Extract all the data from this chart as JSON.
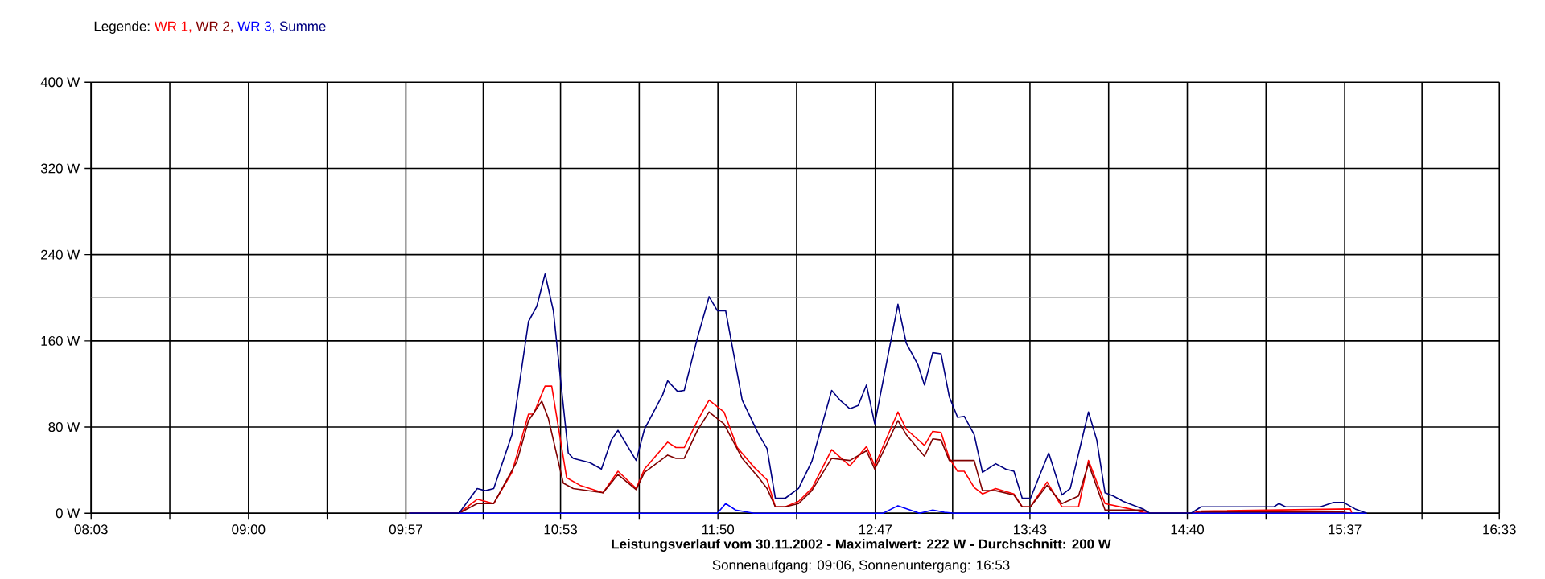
{
  "chart_data": {
    "type": "line",
    "title": "Leistungsverlauf vom 30.11.2002 - Maximalwert: 222 W - Durchschnitt: 200 W",
    "subtitle": "Sonnenaufgang: 09:06, Sonnenuntergang: 16:53",
    "legend_title": "Legende:",
    "legend": "top left",
    "grid": true,
    "xlim": [
      8.05,
      16.55
    ],
    "ylim": [
      0,
      400
    ],
    "xticks": [
      {
        "value": 8.05,
        "label": "08:03"
      },
      {
        "value": 8.525,
        "label": null
      },
      {
        "value": 9,
        "label": "09:00"
      },
      {
        "value": 9.475,
        "label": null
      },
      {
        "value": 9.95,
        "label": "09:57"
      },
      {
        "value": 10.4167,
        "label": null
      },
      {
        "value": 10.8833,
        "label": "10:53"
      },
      {
        "value": 11.3583,
        "label": null
      },
      {
        "value": 11.8333,
        "label": "11:50"
      },
      {
        "value": 12.3083,
        "label": null
      },
      {
        "value": 12.7833,
        "label": "12:47"
      },
      {
        "value": 13.25,
        "label": null
      },
      {
        "value": 13.7167,
        "label": "13:43"
      },
      {
        "value": 14.1917,
        "label": null
      },
      {
        "value": 14.6667,
        "label": "14:40"
      },
      {
        "value": 15.1417,
        "label": null
      },
      {
        "value": 15.6167,
        "label": "15:37"
      },
      {
        "value": 16.0833,
        "label": null
      },
      {
        "value": 16.55,
        "label": "16:33"
      }
    ],
    "yticks": [
      {
        "value": 0,
        "label": "0 W"
      },
      {
        "value": 80,
        "label": "80 W"
      },
      {
        "value": 160,
        "label": "160 W"
      },
      {
        "value": 240,
        "label": "240 W"
      },
      {
        "value": 320,
        "label": "320 W"
      },
      {
        "value": 400,
        "label": "400 W"
      }
    ],
    "ref_lines": [
      {
        "axis": "y",
        "value": 200,
        "color": "#808080"
      }
    ],
    "series": [
      {
        "name": "WR 1,",
        "color": "#ff0000",
        "x": [
          9.97,
          10.27,
          10.38,
          10.48,
          10.59,
          10.69,
          10.72,
          10.79,
          10.83,
          10.92,
          11.0,
          11.14,
          11.23,
          11.34,
          11.39,
          11.53,
          11.58,
          11.63,
          11.71,
          11.78,
          11.87,
          11.95,
          12.05,
          12.13,
          12.18,
          12.24,
          12.32,
          12.4,
          12.52,
          12.63,
          12.73,
          12.78,
          12.92,
          12.97,
          13.08,
          13.13,
          13.18,
          13.23,
          13.28,
          13.32,
          13.38,
          13.43,
          13.51,
          13.62,
          13.67,
          13.72,
          13.82,
          13.91,
          14.01,
          14.07,
          14.12,
          14.17,
          14.32,
          14.4,
          14.44,
          14.69,
          14.75,
          15.65,
          15.66
        ],
        "values": [
          0,
          0,
          13,
          9,
          38,
          92,
          92,
          118,
          118,
          33,
          26,
          19,
          39,
          23,
          41,
          66,
          61,
          61,
          86,
          105,
          94,
          61,
          43,
          31,
          6,
          6,
          11,
          23,
          59,
          44,
          62,
          44,
          94,
          78,
          63,
          76,
          75,
          51,
          39,
          39,
          24,
          18,
          23,
          18,
          6,
          6,
          29,
          6,
          6,
          49,
          29,
          9,
          4,
          1,
          0,
          0,
          2,
          4,
          0
        ]
      },
      {
        "name": "WR 2,",
        "color": "#800000",
        "x": [
          9.97,
          10.27,
          10.38,
          10.48,
          10.62,
          10.69,
          10.77,
          10.81,
          10.9,
          10.96,
          11.14,
          11.23,
          11.34,
          11.39,
          11.53,
          11.58,
          11.63,
          11.71,
          11.78,
          11.87,
          11.98,
          12.08,
          12.13,
          12.18,
          12.24,
          12.32,
          12.4,
          12.52,
          12.63,
          12.73,
          12.78,
          12.92,
          12.97,
          13.08,
          13.13,
          13.18,
          13.23,
          13.38,
          13.43,
          13.51,
          13.62,
          13.67,
          13.72,
          13.82,
          13.91,
          14.01,
          14.07,
          14.17,
          14.32,
          14.4,
          14.44,
          14.69,
          14.75,
          15.61,
          15.65
        ],
        "values": [
          0,
          0,
          9,
          9,
          48,
          86,
          104,
          88,
          28,
          23,
          19,
          36,
          22,
          38,
          54,
          51,
          51,
          77,
          94,
          83,
          51,
          33,
          23,
          6,
          6,
          9,
          21,
          51,
          49,
          58,
          41,
          86,
          73,
          53,
          69,
          68,
          49,
          49,
          21,
          21,
          17,
          6,
          6,
          26,
          9,
          16,
          46,
          3,
          3,
          3,
          0,
          0,
          1,
          1,
          0
        ]
      },
      {
        "name": "WR 3,",
        "color": "#0000ff",
        "x": [
          9.97,
          11.83,
          11.88,
          11.94,
          12.05,
          12.83,
          12.92,
          13.05,
          13.13,
          13.2,
          13.26,
          15.75
        ],
        "values": [
          0,
          0,
          9,
          3,
          0,
          0,
          7,
          0,
          3,
          1,
          0,
          0
        ]
      },
      {
        "name": "Summe",
        "color": "#000080",
        "x": [
          9.97,
          10.27,
          10.38,
          10.43,
          10.48,
          10.59,
          10.69,
          10.74,
          10.79,
          10.84,
          10.93,
          10.96,
          11.06,
          11.13,
          11.19,
          11.23,
          11.34,
          11.39,
          11.5,
          11.53,
          11.59,
          11.63,
          11.71,
          11.78,
          11.83,
          11.88,
          11.98,
          12.08,
          12.13,
          12.18,
          12.24,
          12.32,
          12.4,
          12.52,
          12.57,
          12.63,
          12.68,
          12.73,
          12.78,
          12.92,
          12.97,
          13.04,
          13.08,
          13.13,
          13.18,
          13.23,
          13.28,
          13.32,
          13.38,
          13.43,
          13.51,
          13.57,
          13.62,
          13.67,
          13.72,
          13.83,
          13.91,
          13.96,
          14.07,
          14.12,
          14.17,
          14.22,
          14.28,
          14.4,
          14.44,
          14.69,
          14.75,
          15.19,
          15.22,
          15.26,
          15.47,
          15.55,
          15.61,
          15.68,
          15.75
        ],
        "values": [
          0,
          0,
          23,
          21,
          23,
          73,
          178,
          192,
          222,
          188,
          56,
          51,
          47,
          41,
          68,
          77,
          49,
          78,
          110,
          123,
          113,
          114,
          163,
          201,
          188,
          188,
          105,
          73,
          60,
          14,
          14,
          23,
          48,
          114,
          105,
          97,
          100,
          119,
          83,
          194,
          158,
          138,
          119,
          149,
          148,
          108,
          89,
          90,
          73,
          38,
          46,
          41,
          39,
          14,
          14,
          56,
          17,
          23,
          94,
          68,
          19,
          16,
          11,
          4,
          0,
          0,
          6,
          6,
          9,
          6,
          6,
          10,
          10,
          4,
          0
        ]
      }
    ]
  }
}
